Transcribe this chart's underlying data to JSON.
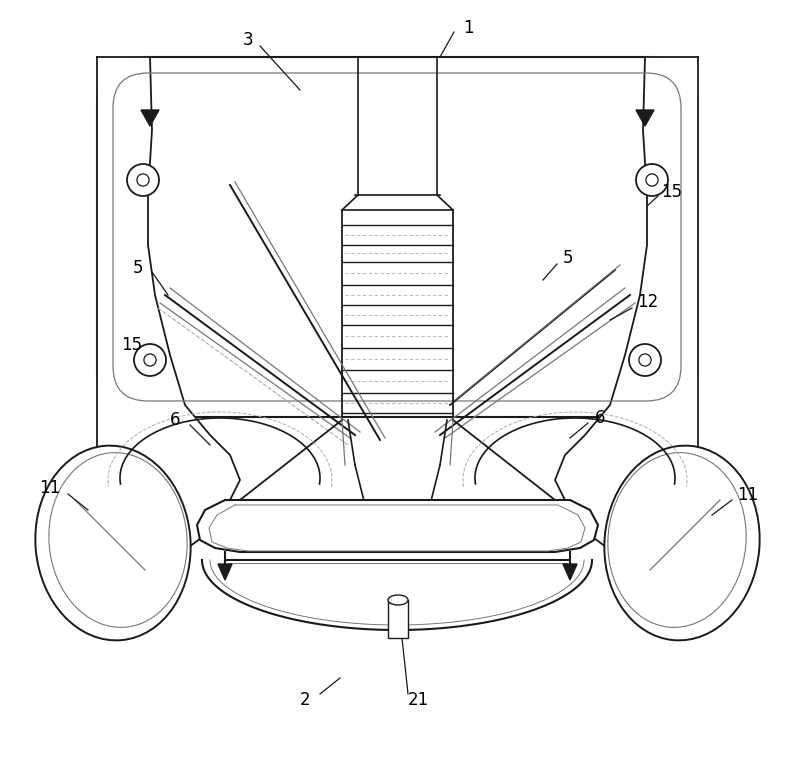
{
  "fig_width": 8.0,
  "fig_height": 7.64,
  "dpi": 100,
  "bg_color": "#ffffff",
  "lc": "#1a1a1a",
  "llc": "#777777",
  "dlc": "#aaaaaa"
}
